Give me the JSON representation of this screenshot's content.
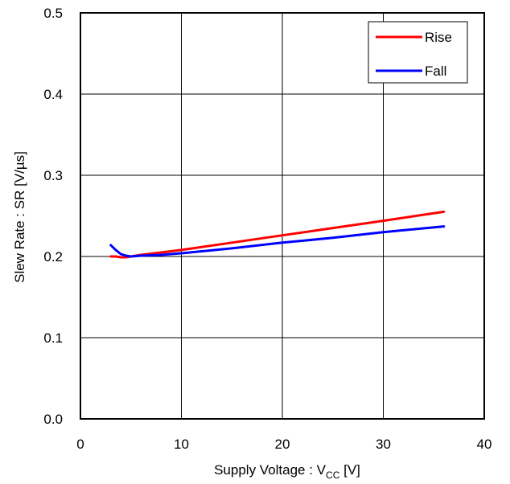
{
  "chart_data": {
    "type": "line",
    "title": "",
    "xlabel": {
      "main": "Supply Voltage : V",
      "sub": "CC",
      "unit": " [V]"
    },
    "ylabel": "Slew Rate : SR [V/µs]",
    "xlim": [
      0,
      40
    ],
    "ylim": [
      0.0,
      0.5
    ],
    "xticks": [
      "0",
      "10",
      "20",
      "30",
      "40"
    ],
    "yticks": [
      "0.0",
      "0.1",
      "0.2",
      "0.3",
      "0.4",
      "0.5"
    ],
    "grid": true,
    "legend": "top-right",
    "series": [
      {
        "name": "Rise",
        "color": "#ff0000",
        "x": [
          3,
          3.5,
          4,
          4.5,
          5,
          6,
          8,
          10,
          15,
          20,
          25,
          30,
          36
        ],
        "y": [
          0.2,
          0.2,
          0.199,
          0.199,
          0.2,
          0.202,
          0.205,
          0.208,
          0.217,
          0.226,
          0.235,
          0.244,
          0.255
        ]
      },
      {
        "name": "Fall",
        "color": "#0000ff",
        "x": [
          3,
          3.5,
          4,
          4.5,
          5,
          6,
          8,
          10,
          15,
          20,
          25,
          30,
          36
        ],
        "y": [
          0.214,
          0.208,
          0.203,
          0.201,
          0.2,
          0.201,
          0.202,
          0.204,
          0.21,
          0.217,
          0.223,
          0.23,
          0.237
        ]
      }
    ]
  }
}
